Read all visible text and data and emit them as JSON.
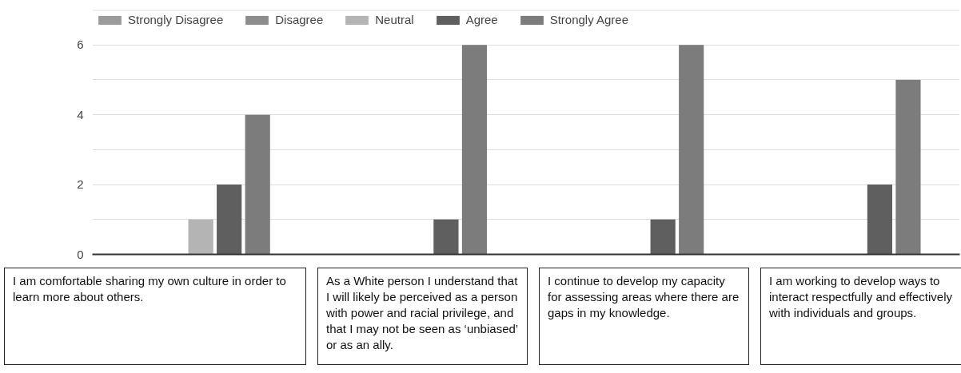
{
  "chart_data": {
    "type": "bar",
    "categories": [
      "I am comfortable sharing my own culture in order to learn more about others.",
      "As a White person I understand that I will likely be perceived as a person with power and racial privilege, and that I may not be seen as ‘unbiased’ or as an ally.",
      "I continue to develop my capacity for assessing areas where there are gaps in my knowledge.",
      "I am working to develop ways to interact respectfully and effectively with individuals and groups."
    ],
    "series": [
      {
        "name": "Strongly Disagree",
        "color": "#9b9b9b",
        "values": [
          0,
          0,
          0,
          0
        ]
      },
      {
        "name": "Disagree",
        "color": "#8d8d8d",
        "values": [
          0,
          0,
          0,
          0
        ]
      },
      {
        "name": "Neutral",
        "color": "#b4b4b4",
        "values": [
          1,
          0,
          0,
          0
        ]
      },
      {
        "name": "Agree",
        "color": "#5f5f5f",
        "values": [
          2,
          1,
          1,
          2
        ]
      },
      {
        "name": "Strongly Agree",
        "color": "#7c7c7c",
        "values": [
          4,
          6,
          6,
          5
        ]
      }
    ],
    "ylim": [
      0,
      7
    ],
    "yticks": [
      0,
      {
        "value": 1,
        "label": null
      },
      2,
      {
        "value": 3,
        "label": null
      },
      4,
      {
        "value": 5,
        "label": null
      },
      6,
      {
        "value": 7,
        "label": null
      }
    ],
    "grid": "y",
    "legend": "top left"
  }
}
